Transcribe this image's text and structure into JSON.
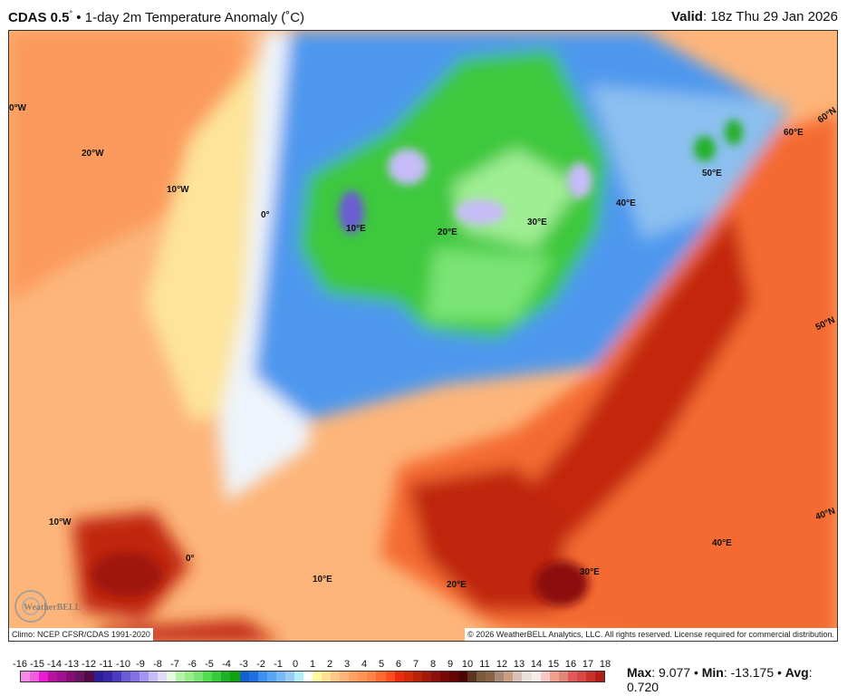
{
  "header": {
    "model": "CDAS 0.5",
    "model_suffix": "°",
    "sep": " • ",
    "title": "1-day 2m Temperature Anomaly (˚C)",
    "valid_label": "Valid",
    "valid_value": ": 18z Thu 29 Jan 2026"
  },
  "map": {
    "grid_labels": [
      "0°W",
      "20°W",
      "10°W",
      "0°",
      "10°E",
      "20°E",
      "30°E",
      "40°E",
      "50°E",
      "60°E",
      "60°N",
      "50°N",
      "40°N",
      "40°E",
      "30°E",
      "20°E",
      "10°E",
      "0°",
      "10°W"
    ],
    "climo": "Climo: NCEP CFSR/CDAS 1991-2020",
    "copyright": "© 2026 WeatherBELL Analytics, LLC. All rights reserved. License required for commercial distribution.",
    "logo": "WeatherBELL"
  },
  "colorbar": {
    "ticks": [
      "-16",
      "-15",
      "-14",
      "-13",
      "-12",
      "-11",
      "-10",
      "-9",
      "-8",
      "-7",
      "-6",
      "-5",
      "-4",
      "-3",
      "-2",
      "-1",
      "0",
      "1",
      "2",
      "3",
      "4",
      "5",
      "6",
      "7",
      "8",
      "9",
      "10",
      "11",
      "12",
      "13",
      "14",
      "15",
      "16",
      "17",
      "18"
    ],
    "colors": [
      "#f48be6",
      "#f35cdf",
      "#ec1ad4",
      "#b7129e",
      "#a0108c",
      "#870c74",
      "#65145e",
      "#540a46",
      "#2c1e98",
      "#3a26a8",
      "#4a3cc0",
      "#6c5cd4",
      "#8470e2",
      "#a494f4",
      "#c6bcf8",
      "#dedcf8",
      "#e6fbe0",
      "#b4f4a8",
      "#98ec8c",
      "#7ae474",
      "#52dc50",
      "#38cc3c",
      "#20b028",
      "#10a010",
      "#1460cc",
      "#1e6ee4",
      "#3c90f0",
      "#58a4f0",
      "#78b8f4",
      "#98ccf4",
      "#b4eef8",
      "#ffffff",
      "#fffaa0",
      "#ffe096",
      "#ffc888",
      "#ffb478",
      "#ffa264",
      "#ff9454",
      "#ff8446",
      "#ff6a30",
      "#ff4c1c",
      "#e82c0c",
      "#d02808",
      "#b82008",
      "#a01808",
      "#8c1008",
      "#780808",
      "#640404",
      "#4c0404",
      "#5c3420",
      "#7a5a3c",
      "#8a6248",
      "#a88878",
      "#c8a080",
      "#d8c0b8",
      "#e8e0dc",
      "#f8ecea",
      "#f8c8c8",
      "#f0a090",
      "#e08878",
      "#e05858",
      "#d84848",
      "#c83028",
      "#b02018"
    ]
  },
  "stats": {
    "max_label": "Max",
    "max": ": 9.077 • ",
    "min_label": "Min",
    "min": ": -13.175 • ",
    "avg_label": "Avg",
    "avg": ": 0.720"
  }
}
